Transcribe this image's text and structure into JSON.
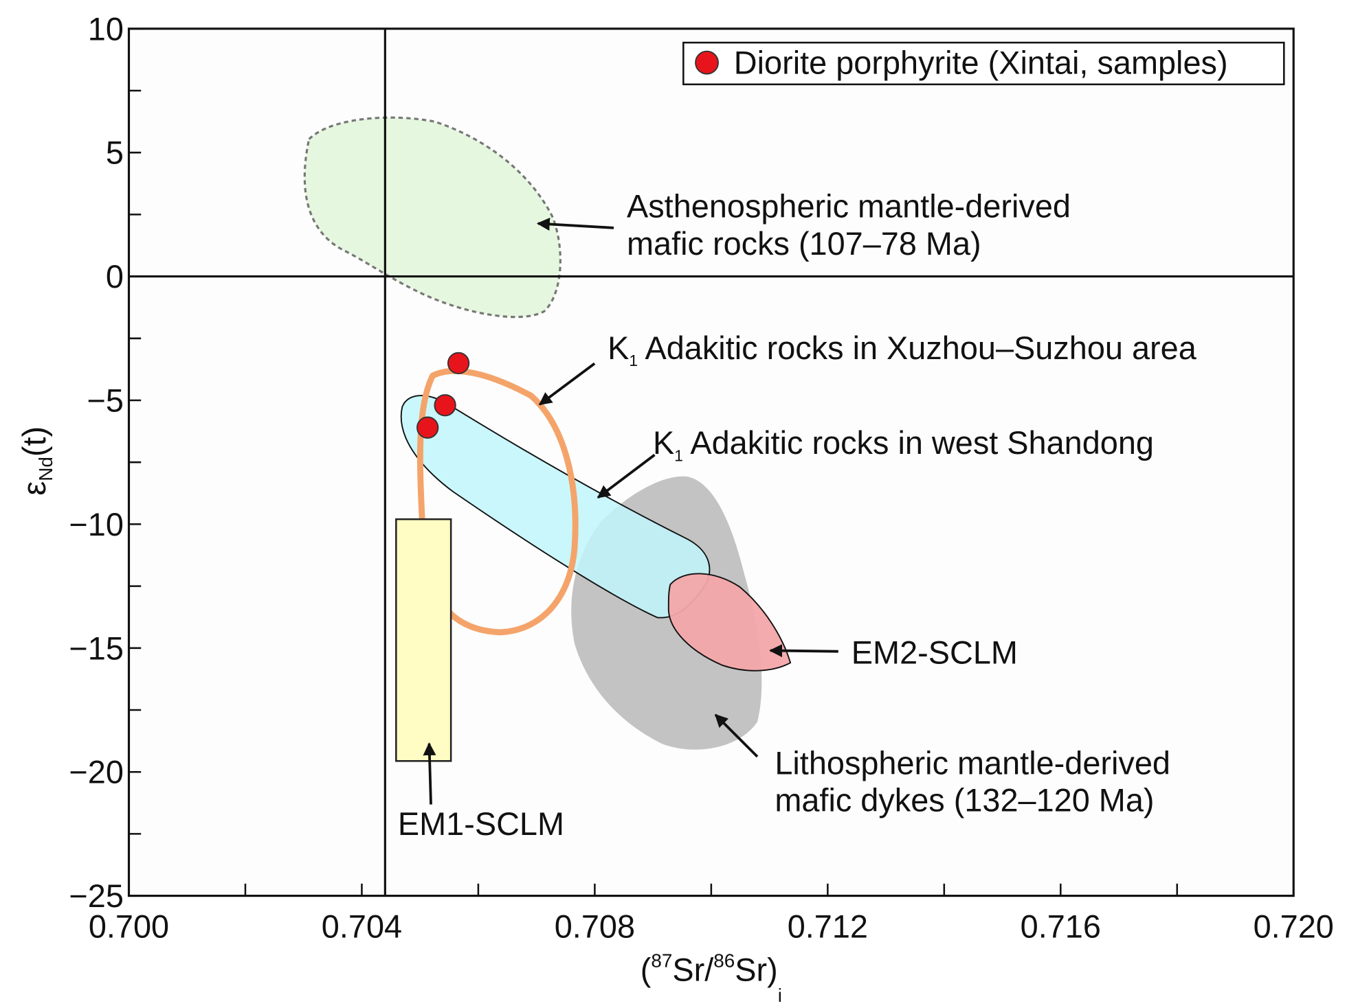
{
  "chart_data": {
    "type": "scatter",
    "xlabel": [
      "(",
      "87",
      "Sr/",
      "86",
      "Sr)",
      "i"
    ],
    "ylabel": [
      "ε",
      "Nd",
      "(t)"
    ],
    "xlim": [
      0.7,
      0.72
    ],
    "ylim": [
      -25,
      10
    ],
    "xticks": [
      {
        "value": 0.7,
        "label": "0.700"
      },
      {
        "value": 0.704,
        "label": "0.704"
      },
      {
        "value": 0.708,
        "label": "0.708"
      },
      {
        "value": 0.712,
        "label": "0.712"
      },
      {
        "value": 0.716,
        "label": "0.716"
      },
      {
        "value": 0.72,
        "label": "0.720"
      }
    ],
    "xminorticks": [
      0.702,
      0.706,
      0.71,
      0.714,
      0.718
    ],
    "yticks": [
      10,
      5,
      0,
      {
        "value": -5,
        "label": "−5"
      },
      {
        "value": -10,
        "label": "−10"
      },
      {
        "value": -15,
        "label": "−15"
      },
      {
        "value": -20,
        "label": "−20"
      },
      {
        "value": -25,
        "label": "−25"
      }
    ],
    "yminorticks": [
      7.5,
      2.5,
      -2.5,
      -7.5,
      -12.5,
      -17.5,
      -22.5
    ],
    "reference_lines": {
      "x": 0.7044,
      "y": 0
    },
    "legend": "upper right",
    "series": [
      {
        "name": "Diorite porphyrite (Xintai, samples)",
        "color": "#e8141c",
        "x": [
          0.70566,
          0.70543,
          0.70513
        ],
        "values": [
          -3.5,
          -5.2,
          -6.1
        ]
      }
    ],
    "annotations": [
      {
        "lines": [
          "Asthenospheric mantle-derived",
          "mafic rocks (107–78 Ma)"
        ]
      },
      {
        "prefix": "K",
        "sub": "1",
        "text": " Adakitic rocks in Xuzhou–Suzhou  area"
      },
      {
        "prefix": "K",
        "sub": "1",
        "text": " Adakitic rocks in west Shandong"
      },
      {
        "lines": [
          "EM2-SCLM"
        ]
      },
      {
        "lines": [
          "Lithospheric mantle-derived",
          "mafic dykes (132–120 Ma)"
        ]
      },
      {
        "lines": [
          "EM1-SCLM"
        ]
      }
    ]
  }
}
